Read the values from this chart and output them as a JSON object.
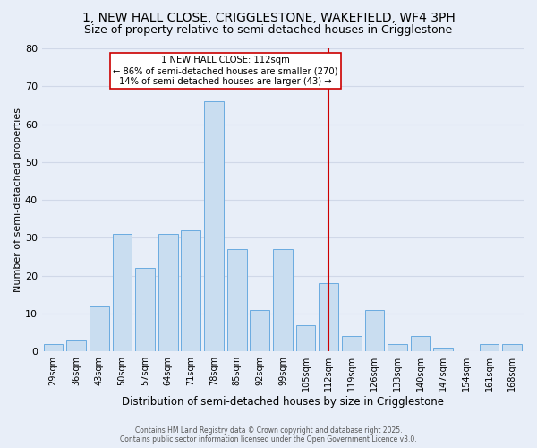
{
  "title": "1, NEW HALL CLOSE, CRIGGLESTONE, WAKEFIELD, WF4 3PH",
  "subtitle": "Size of property relative to semi-detached houses in Crigglestone",
  "xlabel": "Distribution of semi-detached houses by size in Crigglestone",
  "ylabel": "Number of semi-detached properties",
  "bar_labels": [
    "29sqm",
    "36sqm",
    "43sqm",
    "50sqm",
    "57sqm",
    "64sqm",
    "71sqm",
    "78sqm",
    "85sqm",
    "92sqm",
    "99sqm",
    "105sqm",
    "112sqm",
    "119sqm",
    "126sqm",
    "133sqm",
    "140sqm",
    "147sqm",
    "154sqm",
    "161sqm",
    "168sqm"
  ],
  "bar_values": [
    2,
    3,
    12,
    31,
    22,
    31,
    32,
    66,
    27,
    11,
    27,
    7,
    18,
    4,
    11,
    2,
    4,
    1,
    0,
    2,
    2
  ],
  "bar_color": "#c9ddf0",
  "bar_edge_color": "#6aabe0",
  "ylim": [
    0,
    80
  ],
  "yticks": [
    0,
    10,
    20,
    30,
    40,
    50,
    60,
    70,
    80
  ],
  "vline_x_index": 12,
  "vline_color": "#cc0000",
  "annotation_title": "1 NEW HALL CLOSE: 112sqm",
  "annotation_line1": "← 86% of semi-detached houses are smaller (270)",
  "annotation_line2": "14% of semi-detached houses are larger (43) →",
  "annotation_box_facecolor": "#ffffff",
  "annotation_box_edgecolor": "#cc0000",
  "footer1": "Contains HM Land Registry data © Crown copyright and database right 2025.",
  "footer2": "Contains public sector information licensed under the Open Government Licence v3.0.",
  "background_color": "#e8eef8",
  "grid_color": "#d0d8e8",
  "title_fontsize": 10,
  "subtitle_fontsize": 9
}
